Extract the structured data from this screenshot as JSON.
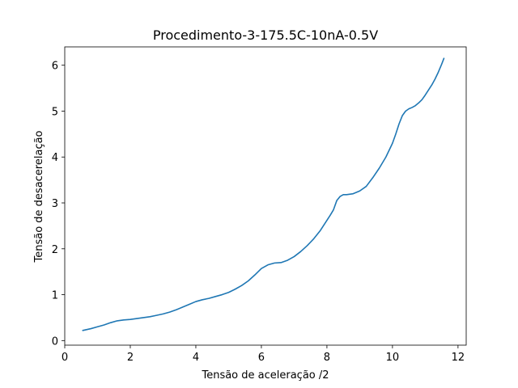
{
  "chart_data": {
    "type": "line",
    "title": "Procedimento-3-175.5C-10nA-0.5V",
    "xlabel": "Tensão de aceleração /2",
    "ylabel": "Tensão de desacerelação",
    "xlim": [
      0,
      12.25
    ],
    "ylim": [
      -0.1,
      6.4
    ],
    "xticks": [
      0,
      2,
      4,
      6,
      8,
      10,
      12
    ],
    "yticks": [
      0,
      1,
      2,
      3,
      4,
      5,
      6
    ],
    "grid": false,
    "legend": "none",
    "series": [
      {
        "color": "#1f77b4",
        "x": [
          0.55,
          0.8,
          1.0,
          1.2,
          1.4,
          1.6,
          1.8,
          2.0,
          2.2,
          2.4,
          2.6,
          2.8,
          3.0,
          3.2,
          3.4,
          3.6,
          3.8,
          4.0,
          4.2,
          4.4,
          4.6,
          4.8,
          5.0,
          5.2,
          5.4,
          5.6,
          5.8,
          6.0,
          6.2,
          6.4,
          6.6,
          6.8,
          7.0,
          7.2,
          7.4,
          7.6,
          7.8,
          8.0,
          8.1,
          8.2,
          8.3,
          8.4,
          8.5,
          8.6,
          8.8,
          9.0,
          9.2,
          9.4,
          9.6,
          9.8,
          10.0,
          10.1,
          10.2,
          10.3,
          10.4,
          10.5,
          10.6,
          10.7,
          10.8,
          10.9,
          11.0,
          11.1,
          11.2,
          11.3,
          11.4,
          11.5,
          11.57
        ],
        "y": [
          0.22,
          0.26,
          0.3,
          0.34,
          0.39,
          0.43,
          0.45,
          0.46,
          0.48,
          0.5,
          0.52,
          0.55,
          0.58,
          0.62,
          0.67,
          0.73,
          0.79,
          0.85,
          0.89,
          0.92,
          0.96,
          1.0,
          1.05,
          1.12,
          1.2,
          1.3,
          1.43,
          1.57,
          1.65,
          1.69,
          1.7,
          1.75,
          1.83,
          1.94,
          2.07,
          2.22,
          2.4,
          2.62,
          2.73,
          2.85,
          3.05,
          3.14,
          3.18,
          3.18,
          3.2,
          3.26,
          3.36,
          3.55,
          3.76,
          4.0,
          4.3,
          4.5,
          4.72,
          4.9,
          5.0,
          5.05,
          5.08,
          5.12,
          5.18,
          5.25,
          5.35,
          5.46,
          5.57,
          5.7,
          5.85,
          6.02,
          6.15
        ]
      }
    ]
  }
}
